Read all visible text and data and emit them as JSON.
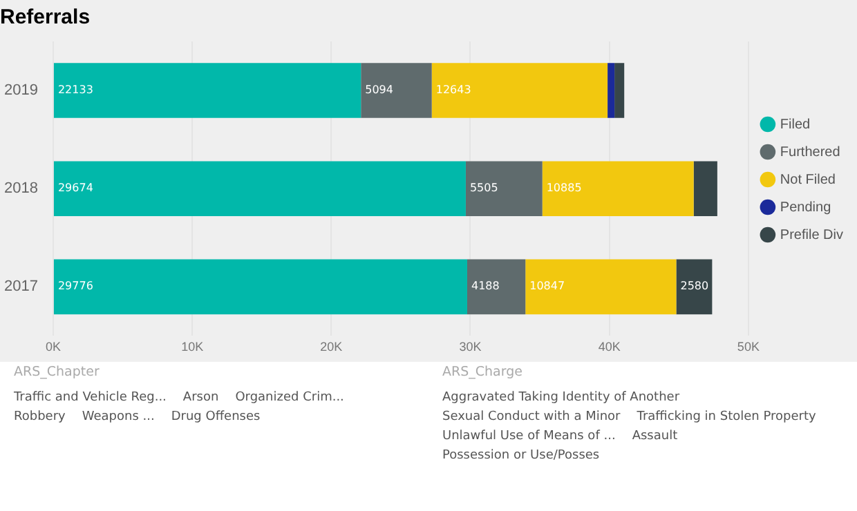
{
  "chart_data": [
    {
      "type": "bar",
      "title": "Referrals",
      "orientation": "horizontal",
      "stacked": true,
      "categories": [
        "2019",
        "2018",
        "2017"
      ],
      "series": [
        {
          "name": "Filed",
          "color": "#01b8aa",
          "values": [
            22133,
            29674,
            29776
          ],
          "value_labels": [
            "22133",
            "29674",
            "29776"
          ]
        },
        {
          "name": "Furthered",
          "color": "#5f6b6d",
          "values": [
            5094,
            5505,
            4188
          ],
          "value_labels": [
            "5094",
            "5505",
            "4188"
          ]
        },
        {
          "name": "Not Filed",
          "color": "#f2c80f",
          "values": [
            12643,
            10885,
            10847
          ],
          "value_labels": [
            "12643",
            "10885",
            "10847"
          ]
        },
        {
          "name": "Pending",
          "color": "#1b2a9a",
          "values": [
            500,
            null,
            null
          ],
          "value_labels": [
            null,
            null,
            null
          ]
        },
        {
          "name": "Prefile Div",
          "color": "#374649",
          "values": [
            700,
            1700,
            2580
          ],
          "value_labels": [
            null,
            null,
            "2580"
          ]
        }
      ],
      "xlim": [
        0,
        50000
      ],
      "xticks": [
        {
          "value": 0,
          "label": "0K"
        },
        {
          "value": 10000,
          "label": "10K"
        },
        {
          "value": 20000,
          "label": "20K"
        },
        {
          "value": 30000,
          "label": "30K"
        },
        {
          "value": 40000,
          "label": "40K"
        },
        {
          "value": 50000,
          "label": "50K"
        }
      ],
      "grid": "x",
      "legend": "right",
      "marker": "circle"
    },
    {
      "type": "other",
      "title": "ARS_Chapter",
      "annotations": [
        "Traffic and Vehicle Reg...",
        "Arson",
        "Organized Crim...",
        "Robbery",
        "Weapons ...",
        "Drug Offenses"
      ]
    },
    {
      "type": "other",
      "title": "ARS_Charge",
      "annotations": [
        "Aggravated Taking Identity of Another",
        "Sexual Conduct with a Minor",
        "Trafficking in Stolen Property",
        "Unlawful Use of Means of ...",
        "Assault",
        "Possession or Use/Posses"
      ]
    }
  ]
}
